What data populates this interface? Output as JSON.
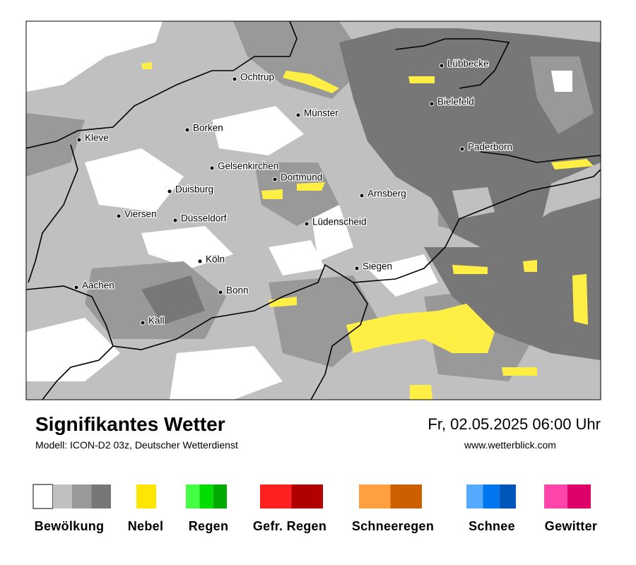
{
  "map": {
    "cities": [
      "Ochtrup",
      "Lübbecke",
      "Bielefeld",
      "Münster",
      "Borken",
      "Kleve",
      "Paderborn",
      "Gelsenkirchen",
      "Dortmund",
      "Duisburg",
      "Arnsberg",
      "Viersen",
      "Düsseldorf",
      "Lüdenscheid",
      "Köln",
      "Siegen",
      "Aachen",
      "Bonn",
      "Kall"
    ]
  },
  "footer": {
    "title": "Signifikantes Wetter",
    "subtitle": "Modell: ICON-D2 03z, Deutscher Wetterdienst",
    "datetime": "Fr, 02.05.2025 06:00 Uhr",
    "website": "www.wetterblick.com"
  },
  "legend": [
    {
      "label": "Bewölkung",
      "colors": [
        "#ffffff",
        "#c0c0c0",
        "#999999",
        "#777777"
      ]
    },
    {
      "label": "Nebel",
      "colors": [
        "#ffe600"
      ]
    },
    {
      "label": "Regen",
      "colors": [
        "#44ff44",
        "#00dd00",
        "#00aa00"
      ]
    },
    {
      "label": "Gefr. Regen",
      "colors": [
        "#ff2020",
        "#b00000"
      ]
    },
    {
      "label": "Schneeregen",
      "colors": [
        "#ffa040",
        "#cc6000"
      ]
    },
    {
      "label": "Schnee",
      "colors": [
        "#55aaff",
        "#0077ee",
        "#0055bb"
      ]
    },
    {
      "label": "Gewitter",
      "colors": [
        "#ff44aa",
        "#e0006a"
      ]
    }
  ]
}
